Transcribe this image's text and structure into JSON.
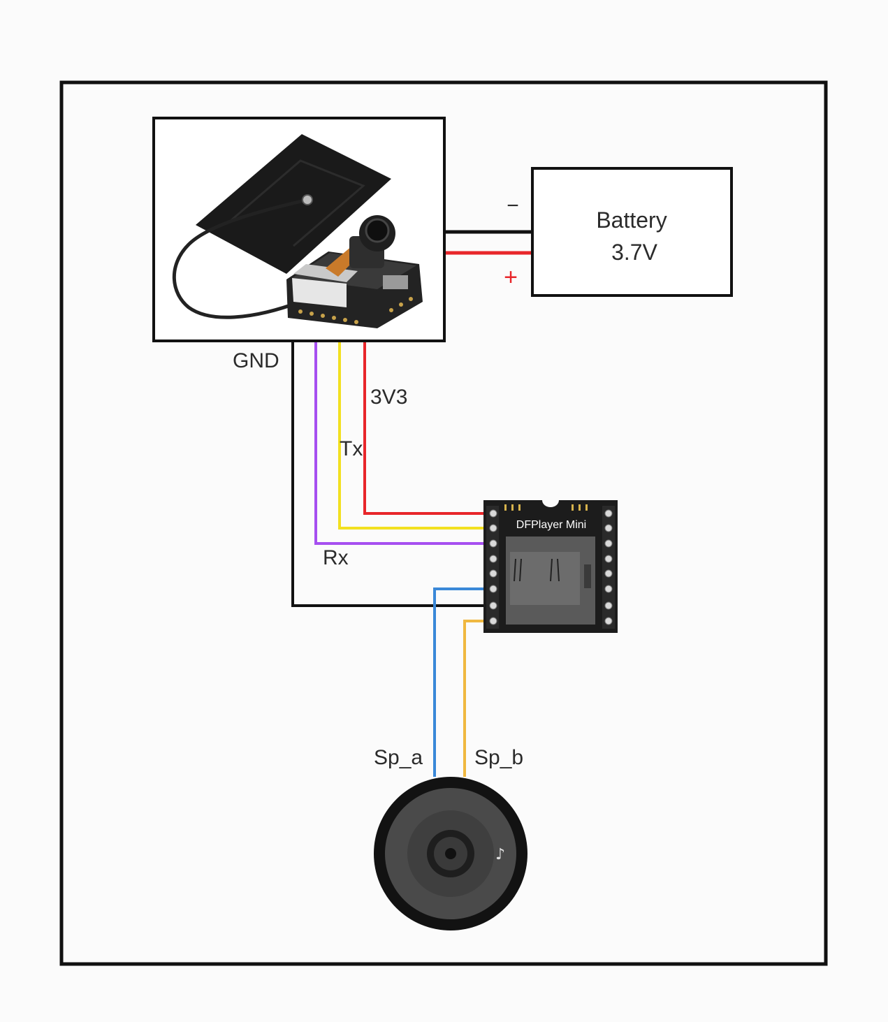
{
  "battery": {
    "name": "Battery",
    "voltage": "3.7V",
    "negative_sign": "−",
    "positive_sign": "+"
  },
  "wires": {
    "gnd": "GND",
    "v33": "3V3",
    "tx": "Tx",
    "rx": "Rx",
    "sp_a": "Sp_a",
    "sp_b": "Sp_b"
  },
  "dfplayer": {
    "title": "DFPlayer Mini"
  },
  "colors": {
    "frame": "#111111",
    "wire_black": "#111111",
    "wire_red": "#e8262a",
    "wire_yellow": "#f2e020",
    "wire_purple": "#a64ff0",
    "wire_blue": "#3a88d8",
    "wire_orange": "#f0b840",
    "board": "#1c1c1c"
  }
}
